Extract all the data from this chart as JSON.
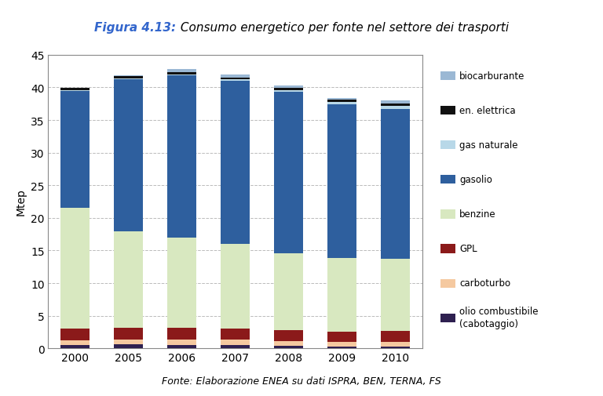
{
  "years": [
    "2000",
    "2005",
    "2006",
    "2007",
    "2008",
    "2009",
    "2010"
  ],
  "series": {
    "olio combustibile (cabotaggio)": {
      "values": [
        0.5,
        0.6,
        0.5,
        0.5,
        0.4,
        0.3,
        0.3
      ],
      "color": "#2E2050"
    },
    "carboturbo": {
      "values": [
        0.7,
        0.8,
        0.8,
        0.8,
        0.7,
        0.7,
        0.7
      ],
      "color": "#F5C9A0"
    },
    "GPL": {
      "values": [
        1.8,
        1.8,
        1.8,
        1.7,
        1.7,
        1.6,
        1.7
      ],
      "color": "#8B1A1A"
    },
    "benzine": {
      "values": [
        18.5,
        14.7,
        13.9,
        13.0,
        11.8,
        11.3,
        11.0
      ],
      "color": "#D8E8C0"
    },
    "gasolio": {
      "values": [
        18.0,
        23.3,
        24.8,
        25.0,
        24.7,
        23.5,
        23.0
      ],
      "color": "#2E5F9E"
    },
    "gas naturale": {
      "values": [
        0.1,
        0.2,
        0.2,
        0.2,
        0.3,
        0.4,
        0.5
      ],
      "color": "#B8D8E8"
    },
    "en. elettrica": {
      "values": [
        0.3,
        0.3,
        0.3,
        0.3,
        0.3,
        0.3,
        0.3
      ],
      "color": "#111111"
    },
    "biocarburante": {
      "values": [
        0.0,
        0.1,
        0.5,
        0.5,
        0.4,
        0.3,
        0.5
      ],
      "color": "#9BB8D4"
    }
  },
  "title_bold": "Figura 4.13:",
  "title_normal": " Consumo energetico per fonte nel settore dei trasporti",
  "ylabel": "Mtep",
  "ylim": [
    0,
    45
  ],
  "yticks": [
    0,
    5,
    10,
    15,
    20,
    25,
    30,
    35,
    40,
    45
  ],
  "footnote": "Fonte: Elaborazione ENEA su dati ISPRA, BEN, TERNA, FS",
  "background_color": "#FFFFFF",
  "grid_color": "#BBBBBB",
  "legend_order": [
    "biocarburante",
    "en. elettrica",
    "gas naturale",
    "gasolio",
    "benzine",
    "GPL",
    "carboturbo",
    "olio combustibile (cabotaggio)"
  ],
  "stack_order": [
    "olio combustibile (cabotaggio)",
    "carboturbo",
    "GPL",
    "benzine",
    "gasolio",
    "gas naturale",
    "en. elettrica",
    "biocarburante"
  ]
}
